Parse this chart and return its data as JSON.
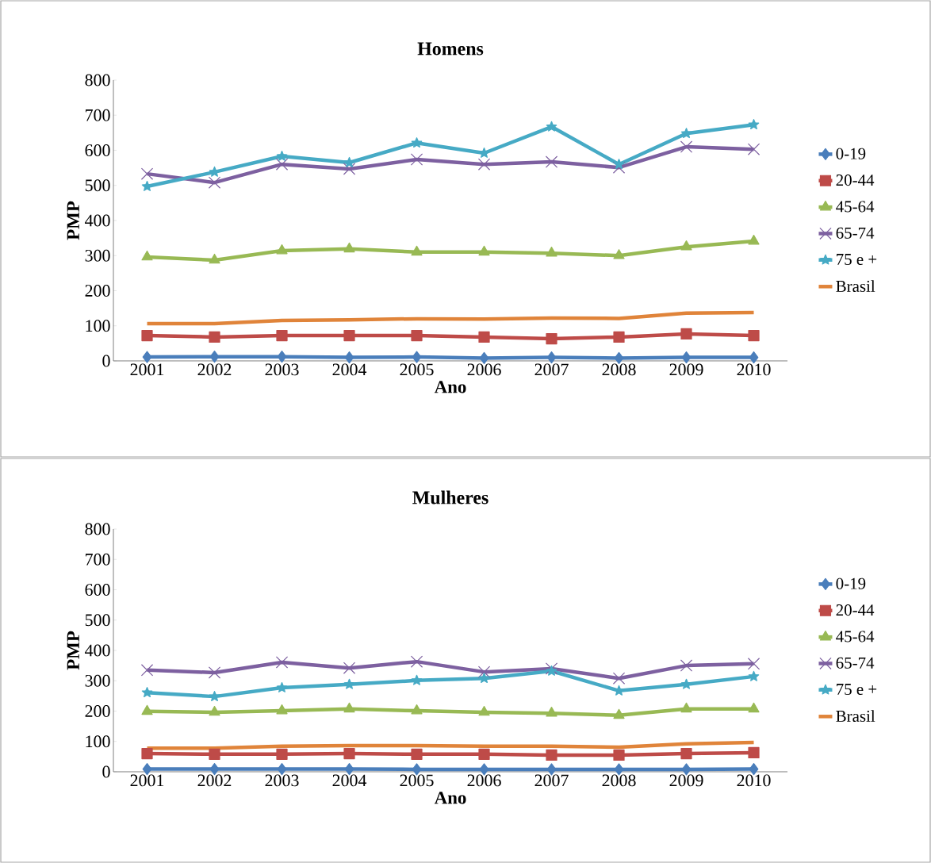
{
  "chart_data": [
    {
      "type": "line",
      "title": "Homens",
      "xlabel": "Ano",
      "ylabel": "PMP",
      "categories": [
        "2001",
        "2002",
        "2003",
        "2004",
        "2005",
        "2006",
        "2007",
        "2008",
        "2009",
        "2010"
      ],
      "ylim": [
        0,
        800
      ],
      "yticks": [
        0,
        100,
        200,
        300,
        400,
        500,
        600,
        700,
        800
      ],
      "grid": false,
      "legend": "right",
      "series": [
        {
          "name": "0-19",
          "color": "#4a7ebb",
          "marker": "diamond",
          "values": [
            11,
            12,
            12,
            10,
            11,
            8,
            10,
            8,
            10,
            10
          ]
        },
        {
          "name": "20-44",
          "color": "#be4b48",
          "marker": "square",
          "values": [
            72,
            68,
            72,
            72,
            72,
            68,
            63,
            68,
            77,
            72
          ]
        },
        {
          "name": "45-64",
          "color": "#98b954",
          "marker": "triangle",
          "values": [
            296,
            287,
            314,
            319,
            310,
            310,
            307,
            300,
            325,
            341
          ]
        },
        {
          "name": "65-74",
          "color": "#7d60a0",
          "marker": "cross",
          "values": [
            533,
            508,
            560,
            547,
            574,
            560,
            567,
            551,
            610,
            603
          ]
        },
        {
          "name": "75 e +",
          "color": "#46aac5",
          "marker": "star",
          "values": [
            497,
            538,
            583,
            565,
            621,
            592,
            667,
            560,
            648,
            673
          ]
        },
        {
          "name": "Brasil",
          "color": "#e0843a",
          "marker": "none",
          "values": [
            106,
            106,
            115,
            117,
            120,
            119,
            122,
            121,
            136,
            138
          ]
        }
      ]
    },
    {
      "type": "line",
      "title": "Mulheres",
      "xlabel": "Ano",
      "ylabel": "PMP",
      "categories": [
        "2001",
        "2002",
        "2003",
        "2004",
        "2005",
        "2006",
        "2007",
        "2008",
        "2009",
        "2010"
      ],
      "ylim": [
        0,
        800
      ],
      "yticks": [
        0,
        100,
        200,
        300,
        400,
        500,
        600,
        700,
        800
      ],
      "grid": false,
      "legend": "right",
      "series": [
        {
          "name": "0-19",
          "color": "#4a7ebb",
          "marker": "diamond",
          "values": [
            9,
            9,
            9,
            9,
            8,
            8,
            8,
            8,
            8,
            9
          ]
        },
        {
          "name": "20-44",
          "color": "#be4b48",
          "marker": "square",
          "values": [
            60,
            58,
            58,
            60,
            58,
            58,
            55,
            55,
            60,
            63
          ]
        },
        {
          "name": "45-64",
          "color": "#98b954",
          "marker": "triangle",
          "values": [
            199,
            196,
            201,
            207,
            201,
            196,
            193,
            186,
            207,
            207
          ]
        },
        {
          "name": "65-74",
          "color": "#7d60a0",
          "marker": "cross",
          "values": [
            335,
            327,
            361,
            342,
            363,
            329,
            340,
            308,
            350,
            356
          ]
        },
        {
          "name": "75 e +",
          "color": "#46aac5",
          "marker": "star",
          "values": [
            261,
            248,
            277,
            288,
            301,
            308,
            332,
            267,
            288,
            314
          ]
        },
        {
          "name": "Brasil",
          "color": "#e0843a",
          "marker": "none",
          "values": [
            78,
            78,
            84,
            86,
            86,
            84,
            84,
            81,
            92,
            97
          ]
        }
      ]
    }
  ]
}
